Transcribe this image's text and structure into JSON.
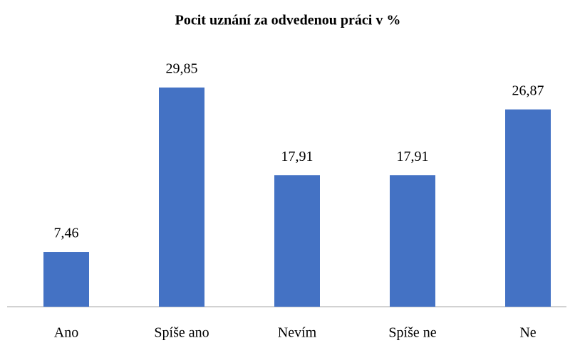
{
  "chart_data": {
    "type": "bar",
    "title": "Pocit uznání za odvedenou práci v %",
    "categories": [
      "Ano",
      "Spíše ano",
      "Nevím",
      "Spíše ne",
      "Ne"
    ],
    "values": [
      7.46,
      29.85,
      17.91,
      17.91,
      26.87
    ],
    "value_labels": [
      "7,46",
      "29,85",
      "17,91",
      "17,91",
      "26,87"
    ],
    "color": "#4472c4"
  }
}
